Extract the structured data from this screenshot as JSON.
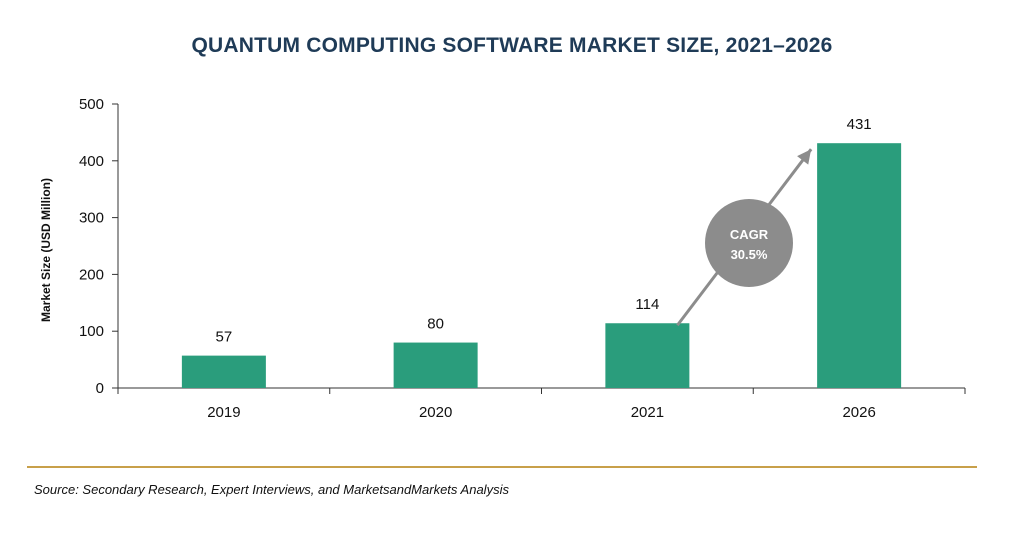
{
  "title": "QUANTUM COMPUTING SOFTWARE MARKET SIZE, 2021–2026",
  "source": "Source: Secondary Research, Expert Interviews, and MarketsandMarkets Analysis",
  "colors": {
    "bar": "#2a9d7c",
    "cagr_bubble": "#8c8c8c",
    "arrow": "#8c8c8c",
    "divider": "#c8a04a",
    "title": "#1f3b57"
  },
  "annotation": {
    "line1": "CAGR",
    "line2": "30.5%"
  },
  "chart_data": {
    "type": "bar",
    "title": "QUANTUM COMPUTING SOFTWARE MARKET SIZE, 2021–2026",
    "xlabel": "",
    "ylabel": "Market Size (USD Million)",
    "categories": [
      "2019",
      "2020",
      "2021",
      "2026"
    ],
    "values": [
      57,
      80,
      114,
      431
    ],
    "ylim": [
      0,
      500
    ],
    "yticks": [
      0,
      100,
      200,
      300,
      400,
      500
    ],
    "grid": false,
    "legend": "none"
  }
}
